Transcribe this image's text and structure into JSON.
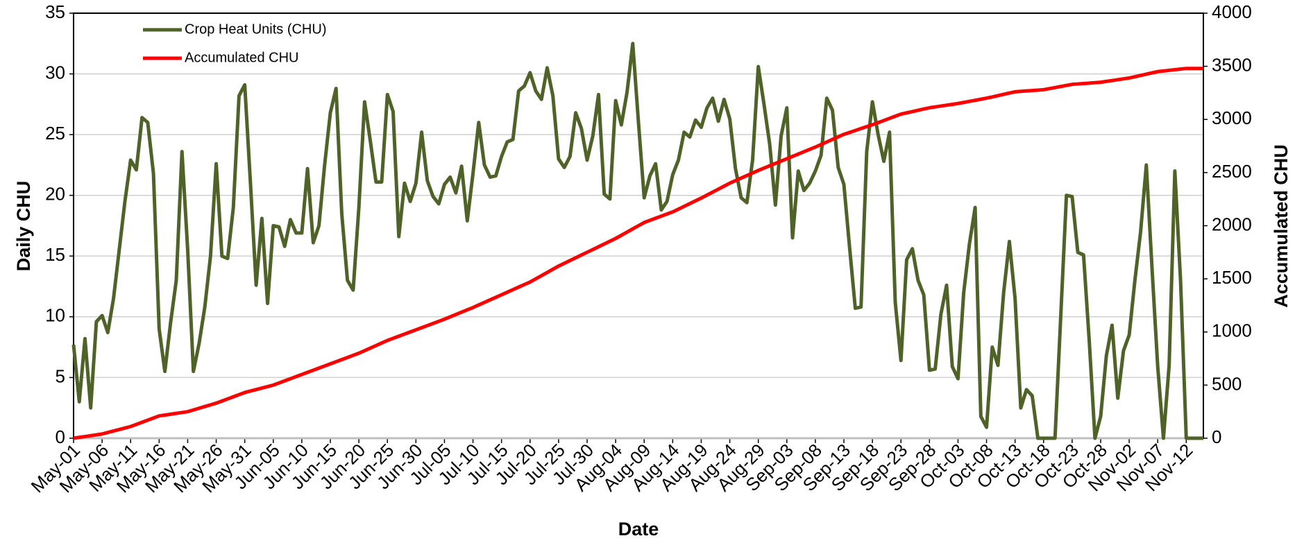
{
  "chart_data": {
    "type": "line",
    "x_label": "Date",
    "y_label": "Daily CHU",
    "y2_label": "Accumulated CHU",
    "categories": [
      "May-01",
      null,
      null,
      null,
      null,
      "May-06",
      null,
      null,
      null,
      null,
      "May-11",
      null,
      null,
      null,
      null,
      "May-16",
      null,
      null,
      null,
      null,
      "May-21",
      null,
      null,
      null,
      null,
      "May-26",
      null,
      null,
      null,
      null,
      "May-31",
      null,
      null,
      null,
      null,
      "Jun-05",
      null,
      null,
      null,
      null,
      "Jun-10",
      null,
      null,
      null,
      null,
      "Jun-15",
      null,
      null,
      null,
      null,
      "Jun-20",
      null,
      null,
      null,
      null,
      "Jun-25",
      null,
      null,
      null,
      null,
      "Jun-30",
      null,
      null,
      null,
      null,
      "Jul-05",
      null,
      null,
      null,
      null,
      "Jul-10",
      null,
      null,
      null,
      null,
      "Jul-15",
      null,
      null,
      null,
      null,
      "Jul-20",
      null,
      null,
      null,
      null,
      "Jul-25",
      null,
      null,
      null,
      null,
      "Jul-30",
      null,
      null,
      null,
      null,
      "Aug-04",
      null,
      null,
      null,
      null,
      "Aug-09",
      null,
      null,
      null,
      null,
      "Aug-14",
      null,
      null,
      null,
      null,
      "Aug-19",
      null,
      null,
      null,
      null,
      "Aug-24",
      null,
      null,
      null,
      null,
      "Aug-29",
      null,
      null,
      null,
      null,
      "Sep-03",
      null,
      null,
      null,
      null,
      "Sep-08",
      null,
      null,
      null,
      null,
      "Sep-13",
      null,
      null,
      null,
      null,
      "Sep-18",
      null,
      null,
      null,
      null,
      "Sep-23",
      null,
      null,
      null,
      null,
      "Sep-28",
      null,
      null,
      null,
      null,
      "Oct-03",
      null,
      null,
      null,
      null,
      "Oct-08",
      null,
      null,
      null,
      null,
      "Oct-13",
      null,
      null,
      null,
      null,
      "Oct-18",
      null,
      null,
      null,
      null,
      "Oct-23",
      null,
      null,
      null,
      null,
      "Oct-28",
      null,
      null,
      null,
      null,
      "Nov-02",
      null,
      null,
      null,
      null,
      "Nov-07",
      null,
      null,
      null,
      null,
      "Nov-12",
      null,
      null,
      null
    ],
    "series": [
      {
        "name": "Crop Heat Units (CHU)",
        "color": "#4f6228",
        "axis": "y",
        "values": [
          7.7,
          3.0,
          8.2,
          2.5,
          9.6,
          10.1,
          8.7,
          11.5,
          15.5,
          19.5,
          22.9,
          22.1,
          26.4,
          26.0,
          21.8,
          9.0,
          5.5,
          9.5,
          13.0,
          23.6,
          15.5,
          5.5,
          7.8,
          10.8,
          15.0,
          22.6,
          15.0,
          14.8,
          19.0,
          28.2,
          29.1,
          21.0,
          12.6,
          18.1,
          11.1,
          17.5,
          17.4,
          15.8,
          18.0,
          16.9,
          16.9,
          22.2,
          16.1,
          17.5,
          22.5,
          26.8,
          28.8,
          18.5,
          13.0,
          12.2,
          19.0,
          27.7,
          24.5,
          21.1,
          21.1,
          28.3,
          26.9,
          16.6,
          21.0,
          19.5,
          21.0,
          25.2,
          21.2,
          19.9,
          19.3,
          20.9,
          21.5,
          20.2,
          22.4,
          17.9,
          21.8,
          26.0,
          22.5,
          21.5,
          21.6,
          23.2,
          24.4,
          24.6,
          28.6,
          29.0,
          30.1,
          28.6,
          27.9,
          30.5,
          28.2,
          23.0,
          22.3,
          23.2,
          26.8,
          25.5,
          22.9,
          24.9,
          28.3,
          20.1,
          19.7,
          27.8,
          25.8,
          28.5,
          32.5,
          26.0,
          19.8,
          21.6,
          22.6,
          18.8,
          19.5,
          21.7,
          22.9,
          25.2,
          24.8,
          26.2,
          25.6,
          27.2,
          28.0,
          26.1,
          27.9,
          26.3,
          22.2,
          19.8,
          19.4,
          22.9,
          30.6,
          27.5,
          24.2,
          19.2,
          24.9,
          27.2,
          16.5,
          22.0,
          20.4,
          21.0,
          22.0,
          23.3,
          28.0,
          27.0,
          22.3,
          20.9,
          15.7,
          10.7,
          10.8,
          23.6,
          27.7,
          25.0,
          22.8,
          25.2,
          11.2,
          6.4,
          14.7,
          15.6,
          13.0,
          11.8,
          5.6,
          5.7,
          10.2,
          12.6,
          5.9,
          4.9,
          12.0,
          16.0,
          19.0,
          1.8,
          0.9,
          7.5,
          6.0,
          12.0,
          16.2,
          11.5,
          2.5,
          4.0,
          3.5,
          0,
          0,
          0,
          0,
          10.0,
          20.0,
          19.9,
          15.3,
          15.1,
          8.0,
          0,
          1.8,
          6.8,
          9.3,
          3.3,
          7.2,
          8.5,
          13.0,
          17.0,
          22.5,
          14.0,
          5.9,
          0,
          6.0,
          22.0,
          13.0,
          0,
          0,
          0,
          0
        ]
      },
      {
        "name": "Accumulated CHU",
        "color": "#ff0000",
        "axis": "y2",
        "values": [
          0,
          8,
          16,
          24,
          32,
          40,
          54,
          68,
          82,
          96,
          110,
          130,
          150,
          170,
          190,
          210,
          218,
          226,
          234,
          242,
          250,
          266,
          282,
          298,
          314,
          330,
          350,
          370,
          390,
          410,
          430,
          444,
          458,
          472,
          486,
          500,
          520,
          540,
          560,
          580,
          600,
          620,
          640,
          660,
          680,
          700,
          720,
          740,
          760,
          780,
          800,
          824,
          848,
          872,
          896,
          920,
          940,
          960,
          980,
          1000,
          1020,
          1040,
          1060,
          1080,
          1100,
          1120,
          1142,
          1164,
          1186,
          1208,
          1230,
          1254,
          1278,
          1302,
          1326,
          1350,
          1374,
          1398,
          1422,
          1446,
          1470,
          1500,
          1530,
          1560,
          1590,
          1620,
          1646,
          1672,
          1698,
          1724,
          1750,
          1776,
          1802,
          1828,
          1854,
          1880,
          1910,
          1940,
          1970,
          2000,
          2030,
          2050,
          2070,
          2090,
          2110,
          2130,
          2156,
          2182,
          2208,
          2234,
          2260,
          2288,
          2316,
          2344,
          2372,
          2400,
          2424,
          2448,
          2472,
          2496,
          2520,
          2542,
          2564,
          2586,
          2608,
          2630,
          2652,
          2674,
          2696,
          2718,
          2740,
          2764,
          2788,
          2812,
          2836,
          2860,
          2878,
          2896,
          2914,
          2932,
          2950,
          2970,
          2990,
          3010,
          3030,
          3050,
          3062,
          3074,
          3086,
          3098,
          3110,
          3118,
          3126,
          3134,
          3142,
          3150,
          3160,
          3170,
          3180,
          3190,
          3200,
          3212,
          3224,
          3236,
          3248,
          3260,
          3264,
          3268,
          3272,
          3276,
          3280,
          3290,
          3300,
          3310,
          3320,
          3330,
          3334,
          3338,
          3342,
          3346,
          3350,
          3358,
          3366,
          3374,
          3382,
          3390,
          3402,
          3414,
          3426,
          3438,
          3450,
          3456,
          3462,
          3468,
          3474,
          3480,
          3480,
          3480,
          3480
        ]
      }
    ],
    "ylim": [
      0,
      35
    ],
    "yticks": [
      0,
      5,
      10,
      15,
      20,
      25,
      30,
      35
    ],
    "y2lim": [
      0,
      4000
    ],
    "y2ticks": [
      0,
      500,
      1000,
      1500,
      2000,
      2500,
      3000,
      3500,
      4000
    ],
    "grid": true,
    "legend": "upper left"
  }
}
